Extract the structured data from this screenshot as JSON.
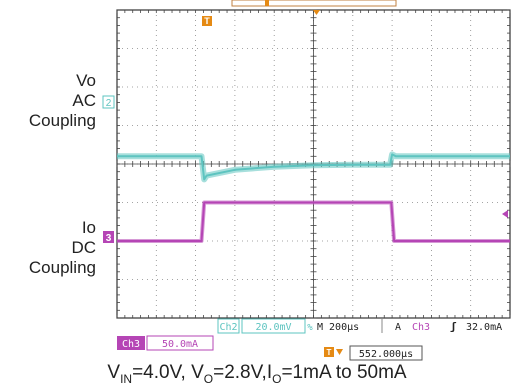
{
  "chart_data": {
    "type": "line",
    "title": "",
    "grid": true,
    "x_divisions": 10,
    "y_divisions": 8,
    "time_per_div": "200µs",
    "series": [
      {
        "name": "Vo AC Coupling",
        "channel": "Ch2",
        "scale": "20.0mV",
        "color": "#5ec4c0",
        "x_div": [
          0,
          2.15,
          2.22,
          2.28,
          3.0,
          4.0,
          5.0,
          6.0,
          6.95,
          7.0,
          7.1,
          10
        ],
        "y_div": [
          0.2,
          0.2,
          -0.4,
          -0.3,
          -0.15,
          -0.07,
          -0.03,
          -0.02,
          -0.02,
          0.25,
          0.2,
          0.2
        ]
      },
      {
        "name": "Io DC Coupling",
        "channel": "Ch3",
        "scale": "50.0mA",
        "color": "#b545b5",
        "x_div": [
          0,
          2.15,
          2.22,
          6.98,
          7.05,
          10
        ],
        "y_div": [
          -2.0,
          -2.0,
          -1.0,
          -1.0,
          -2.0,
          -2.0
        ]
      }
    ]
  },
  "labels": {
    "vo": [
      "Vo",
      "AC",
      "Coupling"
    ],
    "io": [
      "Io",
      "DC",
      "Coupling"
    ]
  },
  "markers": {
    "ch2": "2",
    "ch3": "3",
    "trigger_top": "T",
    "trigger_bottom": "T"
  },
  "readouts": {
    "ch2": "Ch2",
    "ch2_scale": "20.0mV",
    "ch2_bw": "%",
    "time_base": "M 200µs",
    "acq": "A",
    "trig_ch": "Ch3",
    "trig_slope": "ʃ",
    "trig_level": "32.0mA",
    "ch3": "Ch3",
    "ch3_scale": "50.0mA",
    "trig_pos": "552.000µs"
  },
  "caption": {
    "vin": "V",
    "vin_sub": "IN",
    "vin_val": "=4.0V, ",
    "vo": "V",
    "vo_sub": "O",
    "vo_val": "=2.8V,",
    "io": "I",
    "io_sub": "O",
    "io_val": "=1mA to 50mA"
  }
}
